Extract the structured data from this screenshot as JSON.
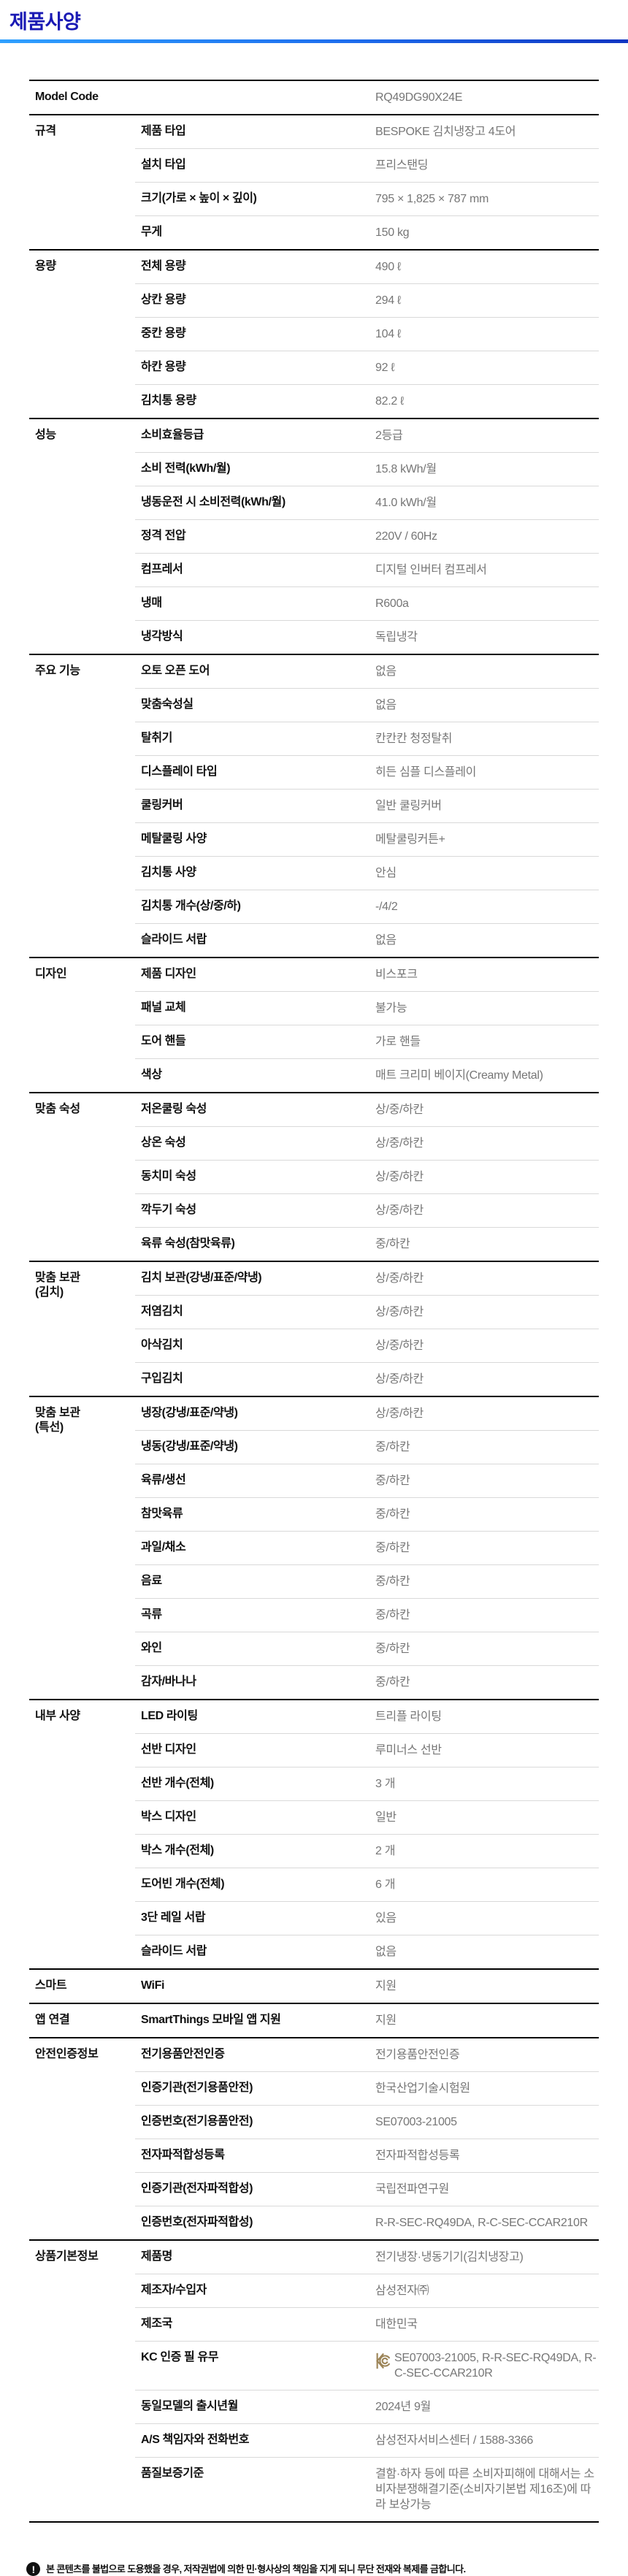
{
  "page": {
    "title": "제품사양"
  },
  "colors": {
    "title_blue": "#1a1ab4",
    "rule_gradient_left": "#2fa0ff",
    "rule_gradient_right": "#0f35c2",
    "label_black": "#101010",
    "value_gray": "#767676",
    "divider_gray": "#d9d9d9",
    "kc_gold": "#9c8457"
  },
  "table": {
    "sections": [
      {
        "category": "",
        "model": true,
        "rows": [
          {
            "label": "Model Code",
            "value": "RQ49DG90X24E"
          }
        ]
      },
      {
        "category": "규격",
        "rows": [
          {
            "label": "제품 타입",
            "value": "BESPOKE 김치냉장고 4도어"
          },
          {
            "label": "설치 타입",
            "value": "프리스탠딩"
          },
          {
            "label": "크기(가로 × 높이 × 깊이)",
            "value": "795 × 1,825 × 787 mm"
          },
          {
            "label": "무게",
            "value": "150 kg"
          }
        ]
      },
      {
        "category": "용량",
        "rows": [
          {
            "label": "전체 용량",
            "value": "490 ℓ"
          },
          {
            "label": "상칸 용량",
            "value": "294 ℓ"
          },
          {
            "label": "중칸 용량",
            "value": "104 ℓ"
          },
          {
            "label": "하칸 용량",
            "value": "92 ℓ"
          },
          {
            "label": "김치통 용량",
            "value": "82.2 ℓ"
          }
        ]
      },
      {
        "category": "성능",
        "rows": [
          {
            "label": "소비효율등급",
            "value": "2등급"
          },
          {
            "label": "소비 전력(kWh/월)",
            "value": "15.8 kWh/월"
          },
          {
            "label": "냉동운전 시 소비전력(kWh/월)",
            "value": "41.0 kWh/월"
          },
          {
            "label": "정격 전압",
            "value": "220V / 60Hz"
          },
          {
            "label": "컴프레서",
            "value": "디지털 인버터 컴프레서"
          },
          {
            "label": "냉매",
            "value": "R600a"
          },
          {
            "label": "냉각방식",
            "value": "독립냉각"
          }
        ]
      },
      {
        "category": "주요 기능",
        "rows": [
          {
            "label": "오토 오픈 도어",
            "value": "없음"
          },
          {
            "label": "맞춤숙성실",
            "value": "없음"
          },
          {
            "label": "탈취기",
            "value": "칸칸칸 청정탈취"
          },
          {
            "label": "디스플레이 타입",
            "value": "히든 심플 디스플레이"
          },
          {
            "label": "쿨링커버",
            "value": "일반 쿨링커버"
          },
          {
            "label": "메탈쿨링 사양",
            "value": "메탈쿨링커튼+"
          },
          {
            "label": "김치통 사양",
            "value": "안심"
          },
          {
            "label": "김치통 개수(상/중/하)",
            "value": "-/4/2"
          },
          {
            "label": "슬라이드 서랍",
            "value": "없음"
          }
        ]
      },
      {
        "category": "디자인",
        "rows": [
          {
            "label": "제품 디자인",
            "value": "비스포크"
          },
          {
            "label": "패널 교체",
            "value": "불가능"
          },
          {
            "label": "도어 핸들",
            "value": "가로 핸들"
          },
          {
            "label": "색상",
            "value": "매트 크리미 베이지(Creamy Metal)"
          }
        ]
      },
      {
        "category": "맞춤 숙성",
        "rows": [
          {
            "label": "저온쿨링 숙성",
            "value": "상/중/하칸"
          },
          {
            "label": "상온 숙성",
            "value": "상/중/하칸"
          },
          {
            "label": "동치미 숙성",
            "value": "상/중/하칸"
          },
          {
            "label": "깍두기 숙성",
            "value": "상/중/하칸"
          },
          {
            "label": "육류 숙성(참맛육류)",
            "value": "중/하칸"
          }
        ]
      },
      {
        "category": "맞춤 보관\n(김치)",
        "rows": [
          {
            "label": "김치 보관(강냉/표준/약냉)",
            "value": "상/중/하칸"
          },
          {
            "label": "저염김치",
            "value": "상/중/하칸"
          },
          {
            "label": "아삭김치",
            "value": "상/중/하칸"
          },
          {
            "label": "구입김치",
            "value": "상/중/하칸"
          }
        ]
      },
      {
        "category": "맞춤 보관\n(특선)",
        "rows": [
          {
            "label": "냉장(강냉/표준/약냉)",
            "value": "상/중/하칸"
          },
          {
            "label": "냉동(강냉/표준/약냉)",
            "value": "중/하칸"
          },
          {
            "label": "육류/생선",
            "value": "중/하칸"
          },
          {
            "label": "참맛육류",
            "value": "중/하칸"
          },
          {
            "label": "과일/채소",
            "value": "중/하칸"
          },
          {
            "label": "음료",
            "value": "중/하칸"
          },
          {
            "label": "곡류",
            "value": "중/하칸"
          },
          {
            "label": "와인",
            "value": "중/하칸"
          },
          {
            "label": "감자/바나나",
            "value": "중/하칸"
          }
        ]
      },
      {
        "category": "내부 사양",
        "rows": [
          {
            "label": "LED 라이팅",
            "value": "트리플 라이팅"
          },
          {
            "label": "선반 디자인",
            "value": "루미너스 선반"
          },
          {
            "label": "선반 개수(전체)",
            "value": "3 개"
          },
          {
            "label": "박스 디자인",
            "value": "일반"
          },
          {
            "label": "박스 개수(전체)",
            "value": "2 개"
          },
          {
            "label": "도어빈 개수(전체)",
            "value": "6 개"
          },
          {
            "label": "3단 레일 서랍",
            "value": "있음"
          },
          {
            "label": "슬라이드 서랍",
            "value": "없음"
          }
        ]
      },
      {
        "category": "스마트",
        "rows": [
          {
            "label": "WiFi",
            "value": "지원"
          }
        ]
      },
      {
        "category": "앱 연결",
        "rows": [
          {
            "label": "SmartThings 모바일 앱 지원",
            "value": "지원"
          }
        ]
      },
      {
        "category": "안전인증정보",
        "rows": [
          {
            "label": "전기용품안전인증",
            "value": "전기용품안전인증"
          },
          {
            "label": "인증기관(전기용품안전)",
            "value": "한국산업기술시험원"
          },
          {
            "label": "인증번호(전기용품안전)",
            "value": "SE07003-21005"
          },
          {
            "label": "전자파적합성등록",
            "value": "전자파적합성등록"
          },
          {
            "label": "인증기관(전자파적합성)",
            "value": "국립전파연구원"
          },
          {
            "label": "인증번호(전자파적합성)",
            "value": "R-R-SEC-RQ49DA, R-C-SEC-CCAR210R"
          }
        ]
      },
      {
        "category": "상품기본정보",
        "rows": [
          {
            "label": "제품명",
            "value": "전기냉장·냉동기기(김치냉장고)"
          },
          {
            "label": "제조자/수입자",
            "value": "삼성전자㈜"
          },
          {
            "label": "제조국",
            "value": "대한민국"
          },
          {
            "label": "KC 인증 필 유무",
            "value": "SE07003-21005, R-R-SEC-RQ49DA, R-C-SEC-CCAR210R",
            "kc_icon": true
          },
          {
            "label": "동일모델의 출시년월",
            "value": "2024년 9월"
          },
          {
            "label": "A/S 책임자와 전화번호",
            "value": "삼성전자서비스센터 / 1588-3366"
          },
          {
            "label": "품질보증기준",
            "value": "결함·하자 등에 따른 소비자피해에 대해서는 소비자분쟁해결기준(소비자기본법 제16조)에 따라 보상가능"
          }
        ]
      }
    ]
  },
  "icons": {
    "kc_icon": "kc-certification-icon",
    "warning_icon": "exclamation-icon",
    "warning_glyph": "!"
  },
  "footer": {
    "notice": "본 콘텐츠를 불법으로 도용했을 경우, 저작권법에 의한 민·형사상의 책임을 지게 되니 무단 전재와 복제를 금합니다."
  }
}
